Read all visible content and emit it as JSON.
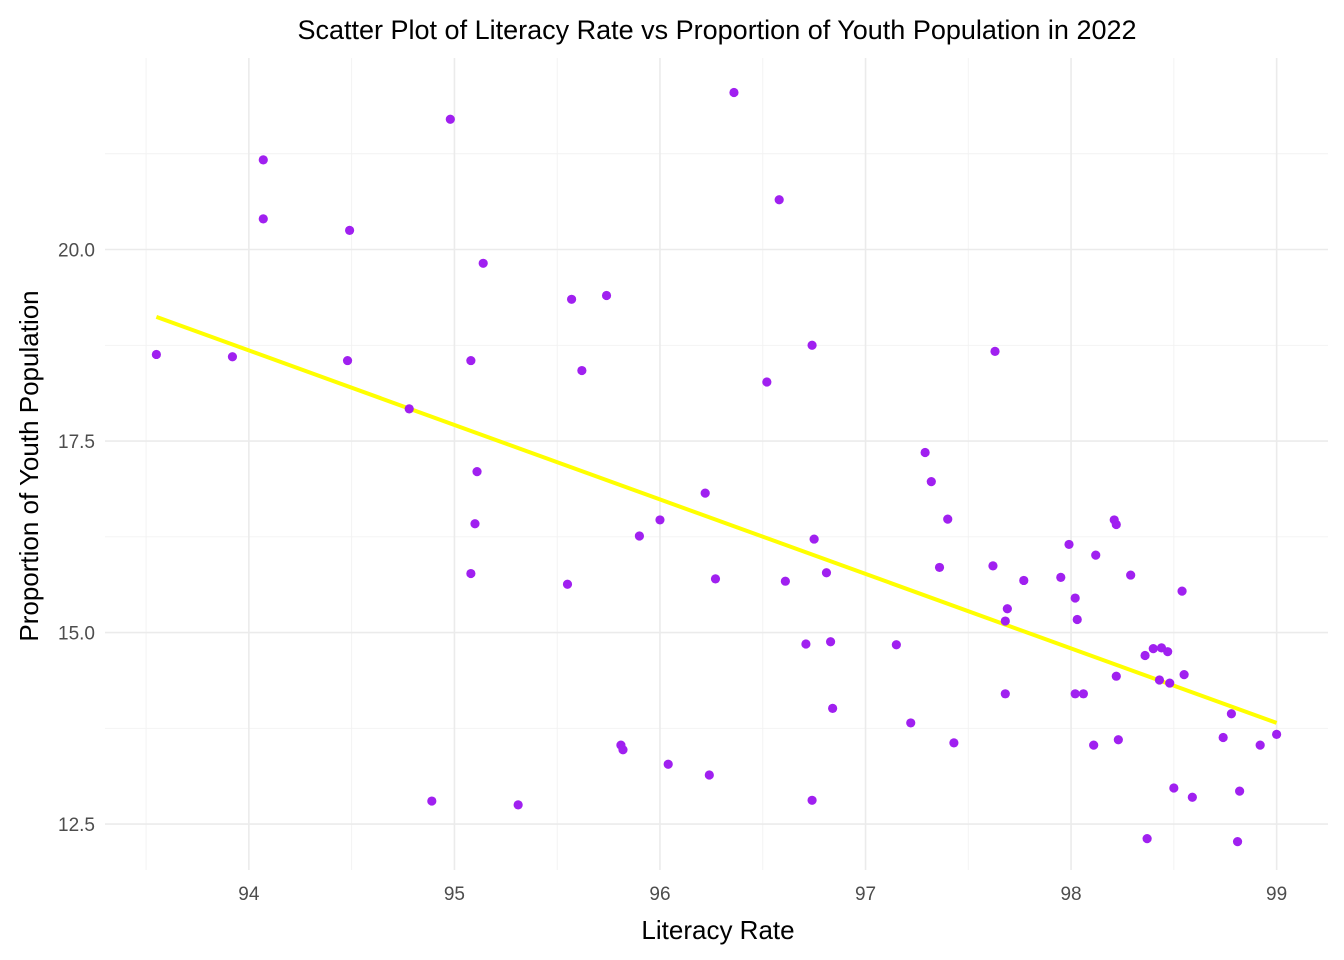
{
  "chart_data": {
    "type": "scatter",
    "title": "Scatter Plot of Literacy Rate vs Proportion of Youth Population in 2022",
    "xlabel": "Literacy Rate",
    "ylabel": "Proportion of Youth Population",
    "xlim": [
      93.3,
      99.25
    ],
    "ylim": [
      11.9,
      22.5
    ],
    "x_ticks": [
      94,
      95,
      96,
      97,
      98,
      99
    ],
    "x_tick_labels": [
      "94",
      "95",
      "96",
      "97",
      "98",
      "99"
    ],
    "y_ticks": [
      12.5,
      15.0,
      17.5,
      20.0
    ],
    "y_tick_labels": [
      "12.5",
      "15.0",
      "17.5",
      "20.0"
    ],
    "grid": true,
    "legend": "none",
    "colors": {
      "points": "#a020f0",
      "trend": "#ffff00",
      "grid": "#ebebeb",
      "background": "#ffffff"
    },
    "trend_line": {
      "x": [
        93.55,
        99.0
      ],
      "y": [
        19.12,
        13.82
      ]
    },
    "points": [
      {
        "x": 93.55,
        "y": 18.63
      },
      {
        "x": 93.92,
        "y": 18.6
      },
      {
        "x": 94.07,
        "y": 21.17
      },
      {
        "x": 94.07,
        "y": 20.4
      },
      {
        "x": 94.48,
        "y": 18.55
      },
      {
        "x": 94.49,
        "y": 20.25
      },
      {
        "x": 94.78,
        "y": 17.92
      },
      {
        "x": 94.89,
        "y": 12.8
      },
      {
        "x": 94.98,
        "y": 21.7
      },
      {
        "x": 95.08,
        "y": 18.55
      },
      {
        "x": 95.08,
        "y": 15.77
      },
      {
        "x": 95.1,
        "y": 16.42
      },
      {
        "x": 95.11,
        "y": 17.1
      },
      {
        "x": 95.14,
        "y": 19.82
      },
      {
        "x": 95.31,
        "y": 12.75
      },
      {
        "x": 95.55,
        "y": 15.63
      },
      {
        "x": 95.57,
        "y": 19.35
      },
      {
        "x": 95.62,
        "y": 18.42
      },
      {
        "x": 95.74,
        "y": 19.4
      },
      {
        "x": 95.81,
        "y": 13.53
      },
      {
        "x": 95.82,
        "y": 13.47
      },
      {
        "x": 95.9,
        "y": 16.26
      },
      {
        "x": 96.0,
        "y": 16.47
      },
      {
        "x": 96.04,
        "y": 13.28
      },
      {
        "x": 96.22,
        "y": 16.82
      },
      {
        "x": 96.24,
        "y": 13.14
      },
      {
        "x": 96.27,
        "y": 15.7
      },
      {
        "x": 96.36,
        "y": 22.05
      },
      {
        "x": 96.52,
        "y": 18.27
      },
      {
        "x": 96.58,
        "y": 20.65
      },
      {
        "x": 96.61,
        "y": 15.67
      },
      {
        "x": 96.71,
        "y": 14.85
      },
      {
        "x": 96.74,
        "y": 18.75
      },
      {
        "x": 96.74,
        "y": 12.81
      },
      {
        "x": 96.75,
        "y": 16.22
      },
      {
        "x": 96.81,
        "y": 15.78
      },
      {
        "x": 96.83,
        "y": 14.88
      },
      {
        "x": 96.84,
        "y": 14.01
      },
      {
        "x": 97.15,
        "y": 14.84
      },
      {
        "x": 97.22,
        "y": 13.82
      },
      {
        "x": 97.29,
        "y": 17.35
      },
      {
        "x": 97.32,
        "y": 16.97
      },
      {
        "x": 97.36,
        "y": 15.85
      },
      {
        "x": 97.4,
        "y": 16.48
      },
      {
        "x": 97.43,
        "y": 13.56
      },
      {
        "x": 97.62,
        "y": 15.87
      },
      {
        "x": 97.63,
        "y": 18.67
      },
      {
        "x": 97.68,
        "y": 14.2
      },
      {
        "x": 97.68,
        "y": 15.15
      },
      {
        "x": 97.69,
        "y": 15.31
      },
      {
        "x": 97.77,
        "y": 15.68
      },
      {
        "x": 97.95,
        "y": 15.72
      },
      {
        "x": 97.99,
        "y": 16.15
      },
      {
        "x": 98.02,
        "y": 15.45
      },
      {
        "x": 98.02,
        "y": 14.2
      },
      {
        "x": 98.03,
        "y": 15.17
      },
      {
        "x": 98.06,
        "y": 14.2
      },
      {
        "x": 98.11,
        "y": 13.53
      },
      {
        "x": 98.12,
        "y": 16.01
      },
      {
        "x": 98.21,
        "y": 16.47
      },
      {
        "x": 98.22,
        "y": 16.41
      },
      {
        "x": 98.22,
        "y": 14.43
      },
      {
        "x": 98.23,
        "y": 13.6
      },
      {
        "x": 98.29,
        "y": 15.75
      },
      {
        "x": 98.36,
        "y": 14.7
      },
      {
        "x": 98.37,
        "y": 12.31
      },
      {
        "x": 98.4,
        "y": 14.79
      },
      {
        "x": 98.43,
        "y": 14.38
      },
      {
        "x": 98.44,
        "y": 14.8
      },
      {
        "x": 98.47,
        "y": 14.75
      },
      {
        "x": 98.48,
        "y": 14.34
      },
      {
        "x": 98.5,
        "y": 12.97
      },
      {
        "x": 98.54,
        "y": 15.54
      },
      {
        "x": 98.55,
        "y": 14.45
      },
      {
        "x": 98.59,
        "y": 12.85
      },
      {
        "x": 98.74,
        "y": 13.63
      },
      {
        "x": 98.78,
        "y": 13.94
      },
      {
        "x": 98.81,
        "y": 12.27
      },
      {
        "x": 98.82,
        "y": 12.93
      },
      {
        "x": 98.92,
        "y": 13.53
      },
      {
        "x": 99.0,
        "y": 13.67
      }
    ]
  }
}
